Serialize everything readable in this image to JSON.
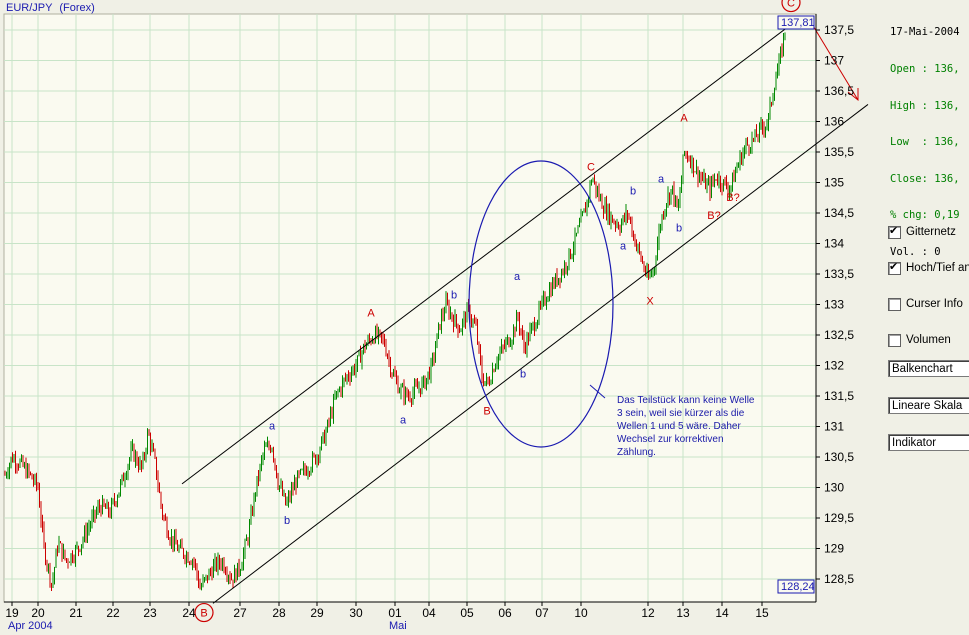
{
  "header": {
    "symbol": "EUR/JPY",
    "market": "(Forex)"
  },
  "ohlc_panel": {
    "date": "17-Mai-2004",
    "open": "Open : 136,",
    "high": "High : 136,",
    "low": "Low  : 136,",
    "close": "Close: 136,",
    "chg": "% chg: 0,19",
    "vol": "Vol. : 0"
  },
  "controls": {
    "gitternetz": {
      "label": "Gitternetz",
      "checked": true
    },
    "hochtief": {
      "label": "Hoch/Tief an",
      "checked": true
    },
    "curser": {
      "label": "Curser Info",
      "checked": false
    },
    "volumen": {
      "label": "Volumen",
      "checked": false
    },
    "chart_type": "Balkenchart",
    "scale": "Lineare Skala",
    "indicator": "Indikator"
  },
  "annotation_note": [
    "Das Teilstück kann keine Welle",
    "3 sein, weil sie kürzer als die",
    "Wellen 1 und 5 wäre. Daher",
    "Wechsel zur korrektiven",
    "Zählung."
  ],
  "chart_data": {
    "type": "ohlc-bar",
    "title": "EUR/JPY (Forex)",
    "y_range": [
      128.1,
      137.8
    ],
    "y_ticks": [
      "128,5",
      "129",
      "129,5",
      "130",
      "130,5",
      "131",
      "131,5",
      "132",
      "132,5",
      "133",
      "133,5",
      "134",
      "134,5",
      "135",
      "135,5",
      "136",
      "136,5",
      "137",
      "137,5"
    ],
    "x_ticks": [
      "19",
      "20",
      "21",
      "22",
      "23",
      "24",
      "27",
      "28",
      "29",
      "30",
      "01",
      "04",
      "05",
      "06",
      "07",
      "10",
      "12",
      "13",
      "14",
      "15"
    ],
    "x_groups": [
      "Apr 2004",
      "Mai"
    ],
    "high_marker": "137,81",
    "low_marker": "128,24",
    "grid": true,
    "path": [
      [
        0,
        130.0
      ],
      [
        12,
        130.5
      ],
      [
        20,
        130.4
      ],
      [
        30,
        130.2
      ],
      [
        38,
        130.0
      ],
      [
        44,
        129.0
      ],
      [
        52,
        128.4
      ],
      [
        58,
        129.1
      ],
      [
        66,
        128.8
      ],
      [
        78,
        129.0
      ],
      [
        90,
        129.4
      ],
      [
        100,
        129.7
      ],
      [
        110,
        129.6
      ],
      [
        120,
        130.0
      ],
      [
        132,
        130.6
      ],
      [
        142,
        130.3
      ],
      [
        148,
        130.9
      ],
      [
        155,
        130.4
      ],
      [
        162,
        129.6
      ],
      [
        170,
        129.2
      ],
      [
        178,
        129.0
      ],
      [
        186,
        128.9
      ],
      [
        194,
        128.8
      ],
      [
        200,
        128.35
      ],
      [
        206,
        128.5
      ],
      [
        214,
        128.7
      ],
      [
        222,
        128.8
      ],
      [
        232,
        128.5
      ],
      [
        240,
        128.7
      ],
      [
        248,
        129.2
      ],
      [
        256,
        130.0
      ],
      [
        264,
        130.6
      ],
      [
        272,
        130.7
      ],
      [
        278,
        130.1
      ],
      [
        286,
        129.7
      ],
      [
        296,
        130.1
      ],
      [
        306,
        130.3
      ],
      [
        316,
        130.5
      ],
      [
        326,
        130.9
      ],
      [
        336,
        131.5
      ],
      [
        346,
        131.8
      ],
      [
        356,
        132.0
      ],
      [
        364,
        132.3
      ],
      [
        374,
        132.5
      ],
      [
        384,
        132.4
      ],
      [
        392,
        131.9
      ],
      [
        400,
        131.6
      ],
      [
        408,
        131.5
      ],
      [
        416,
        131.6
      ],
      [
        424,
        131.7
      ],
      [
        432,
        132.0
      ],
      [
        440,
        132.7
      ],
      [
        446,
        133.0
      ],
      [
        452,
        132.8
      ],
      [
        460,
        132.6
      ],
      [
        468,
        132.9
      ],
      [
        476,
        132.6
      ],
      [
        482,
        131.8
      ],
      [
        488,
        131.7
      ],
      [
        496,
        132.1
      ],
      [
        504,
        132.3
      ],
      [
        512,
        132.5
      ],
      [
        518,
        132.8
      ],
      [
        524,
        132.3
      ],
      [
        532,
        132.6
      ],
      [
        540,
        132.9
      ],
      [
        548,
        133.2
      ],
      [
        556,
        133.4
      ],
      [
        564,
        133.6
      ],
      [
        572,
        133.9
      ],
      [
        580,
        134.3
      ],
      [
        586,
        134.6
      ],
      [
        592,
        135.1
      ],
      [
        598,
        134.8
      ],
      [
        604,
        134.6
      ],
      [
        612,
        134.4
      ],
      [
        620,
        134.3
      ],
      [
        628,
        134.5
      ],
      [
        634,
        134.1
      ],
      [
        642,
        133.7
      ],
      [
        648,
        133.4
      ],
      [
        654,
        133.6
      ],
      [
        660,
        134.3
      ],
      [
        666,
        134.7
      ],
      [
        672,
        134.9
      ],
      [
        678,
        134.5
      ],
      [
        684,
        135.5
      ],
      [
        690,
        135.4
      ],
      [
        696,
        135.2
      ],
      [
        704,
        135.0
      ],
      [
        710,
        134.9
      ],
      [
        716,
        135.1
      ],
      [
        722,
        135.0
      ],
      [
        730,
        134.9
      ],
      [
        738,
        135.3
      ],
      [
        746,
        135.6
      ],
      [
        754,
        135.7
      ],
      [
        762,
        135.9
      ],
      [
        768,
        136.0
      ],
      [
        774,
        136.6
      ],
      [
        780,
        137.0
      ],
      [
        786,
        137.6
      ]
    ],
    "upper_channel": {
      "from": [
        182,
        130.06
      ],
      "to": [
        800,
        137.7
      ]
    },
    "lower_channel": {
      "from": [
        213,
        128.1
      ],
      "to": [
        868,
        136.28
      ]
    },
    "wave_labels": [
      {
        "t": "A",
        "x": 371,
        "y": 132.8,
        "c": "red"
      },
      {
        "t": "a",
        "x": 272,
        "y": 130.95,
        "c": "blue"
      },
      {
        "t": "b",
        "x": 287,
        "y": 129.4,
        "c": "blue"
      },
      {
        "t": "a",
        "x": 403,
        "y": 131.05,
        "c": "blue"
      },
      {
        "t": "b",
        "x": 454,
        "y": 133.1,
        "c": "blue"
      },
      {
        "t": "B",
        "x": 487,
        "y": 131.2,
        "c": "red"
      },
      {
        "t": "a",
        "x": 517,
        "y": 133.4,
        "c": "blue"
      },
      {
        "t": "b",
        "x": 523,
        "y": 131.8,
        "c": "blue"
      },
      {
        "t": "C",
        "x": 591,
        "y": 135.2,
        "c": "red"
      },
      {
        "t": "b",
        "x": 633,
        "y": 134.8,
        "c": "blue"
      },
      {
        "t": "a",
        "x": 623,
        "y": 133.9,
        "c": "blue"
      },
      {
        "t": "X",
        "x": 650,
        "y": 133.0,
        "c": "red"
      },
      {
        "t": "a",
        "x": 661,
        "y": 135.0,
        "c": "blue"
      },
      {
        "t": "b",
        "x": 679,
        "y": 134.2,
        "c": "blue"
      },
      {
        "t": "A",
        "x": 684,
        "y": 136.0,
        "c": "red"
      },
      {
        "t": "B?",
        "x": 714,
        "y": 134.4,
        "c": "red"
      },
      {
        "t": "B?",
        "x": 733,
        "y": 134.7,
        "c": "red"
      }
    ],
    "circled_labels": [
      {
        "t": "B",
        "x": 204,
        "y": 127.95
      },
      {
        "t": "C",
        "x": 791,
        "y": 137.95
      }
    ]
  }
}
